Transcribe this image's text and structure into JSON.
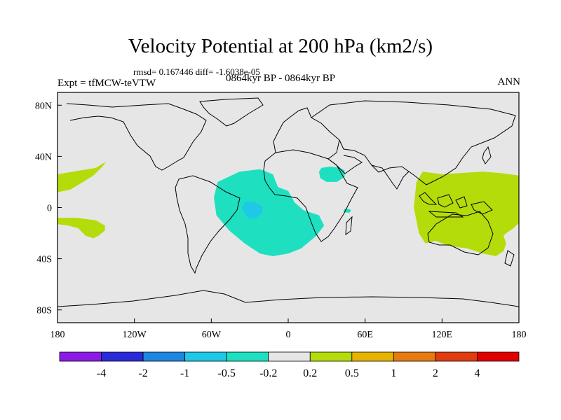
{
  "title": "Velocity Potential at 200 hPa (km2/s)",
  "stats": "rmsd= 0.167446  diff= -1.6038e-05",
  "experiment": "Expt = tfMCW-teVTW",
  "period": "0864kyr BP - 0864kyr BP",
  "season": "ANN",
  "chart_data": {
    "type": "heatmap",
    "projection": "cylindrical-equidistant",
    "xlim": [
      -180,
      180
    ],
    "ylim": [
      -90,
      90
    ],
    "x_ticks": [
      {
        "value": -180,
        "label": "180"
      },
      {
        "value": -120,
        "label": "120W"
      },
      {
        "value": -60,
        "label": "60W"
      },
      {
        "value": 0,
        "label": "0"
      },
      {
        "value": 60,
        "label": "60E"
      },
      {
        "value": 120,
        "label": "120E"
      },
      {
        "value": 180,
        "label": "180"
      }
    ],
    "y_ticks": [
      {
        "value": 80,
        "label": "80N"
      },
      {
        "value": 40,
        "label": "40N"
      },
      {
        "value": 0,
        "label": "0"
      },
      {
        "value": -40,
        "label": "40S"
      },
      {
        "value": -80,
        "label": "80S"
      }
    ],
    "background_color": "#e6e6e6",
    "colorbar": {
      "labels": [
        "-4",
        "-2",
        "-1",
        "-0.5",
        "-0.2",
        "0.2",
        "0.5",
        "1",
        "2",
        "4"
      ],
      "colors": [
        "#8c1ae6",
        "#2a2ad8",
        "#1e86e0",
        "#1ec8e6",
        "#1ee0c0",
        "#e6e6e6",
        "#b4dc0a",
        "#e6b400",
        "#e67a10",
        "#e03c10",
        "#e00000"
      ]
    },
    "regions": [
      {
        "name": "atlantic-africa-negative",
        "level": "-0.5 to -0.2",
        "color": "#1ee0c0",
        "points": [
          [
            -55,
            20
          ],
          [
            -38,
            28
          ],
          [
            -22,
            30
          ],
          [
            -12,
            26
          ],
          [
            -8,
            16
          ],
          [
            0,
            13
          ],
          [
            5,
            4
          ],
          [
            12,
            -2
          ],
          [
            24,
            -6
          ],
          [
            28,
            -14
          ],
          [
            22,
            -22
          ],
          [
            10,
            -32
          ],
          [
            0,
            -36
          ],
          [
            -12,
            -38
          ],
          [
            -22,
            -36
          ],
          [
            -34,
            -28
          ],
          [
            -46,
            -18
          ],
          [
            -56,
            -6
          ],
          [
            -58,
            8
          ]
        ]
      },
      {
        "name": "brazil-core",
        "level": "-1 to -0.5",
        "color": "#1ec8e6",
        "points": [
          [
            -33,
            5
          ],
          [
            -26,
            4
          ],
          [
            -20,
            1
          ],
          [
            -20,
            -4
          ],
          [
            -25,
            -8
          ],
          [
            -30,
            -9
          ],
          [
            -34,
            -5
          ],
          [
            -36,
            0
          ]
        ]
      },
      {
        "name": "arabia-negative",
        "level": "-0.5 to -0.2",
        "color": "#1ee0c0",
        "points": [
          [
            26,
            31
          ],
          [
            33,
            32
          ],
          [
            40,
            31
          ],
          [
            44,
            29
          ],
          [
            44,
            24
          ],
          [
            38,
            20
          ],
          [
            30,
            20
          ],
          [
            25,
            23
          ],
          [
            24,
            28
          ]
        ]
      },
      {
        "name": "east-africa-negative",
        "level": "-0.5 to -0.2",
        "color": "#1ee0c0",
        "points": [
          [
            44,
            -1
          ],
          [
            47,
            -1
          ],
          [
            49,
            -2
          ],
          [
            48,
            -4
          ],
          [
            45,
            -4
          ],
          [
            43,
            -3
          ]
        ]
      },
      {
        "name": "maritime-continent-positive",
        "level": "0.2 to 0.5",
        "color": "#b4dc0a",
        "points": [
          [
            105,
            28
          ],
          [
            120,
            26
          ],
          [
            135,
            27
          ],
          [
            152,
            28
          ],
          [
            165,
            27
          ],
          [
            180,
            25
          ],
          [
            180,
            -12
          ],
          [
            176,
            -16
          ],
          [
            170,
            -20
          ],
          [
            168,
            -22
          ],
          [
            170,
            -28
          ],
          [
            168,
            -34
          ],
          [
            162,
            -38
          ],
          [
            152,
            -36
          ],
          [
            140,
            -32
          ],
          [
            125,
            -30
          ],
          [
            115,
            -26
          ],
          [
            107,
            -28
          ],
          [
            102,
            -20
          ],
          [
            100,
            -10
          ],
          [
            98,
            0
          ],
          [
            99,
            10
          ],
          [
            100,
            20
          ]
        ]
      },
      {
        "name": "east-pacific-north-positive",
        "level": "0.2 to 0.5",
        "color": "#b4dc0a",
        "points": [
          [
            -180,
            26
          ],
          [
            -168,
            28
          ],
          [
            -150,
            31
          ],
          [
            -142,
            36
          ],
          [
            -145,
            32
          ],
          [
            -152,
            25
          ],
          [
            -160,
            20
          ],
          [
            -170,
            14
          ],
          [
            -180,
            12
          ]
        ]
      },
      {
        "name": "east-pacific-south-positive",
        "level": "0.2 to 0.5",
        "color": "#b4dc0a",
        "points": [
          [
            -180,
            -8
          ],
          [
            -165,
            -8
          ],
          [
            -150,
            -10
          ],
          [
            -143,
            -14
          ],
          [
            -143,
            -18
          ],
          [
            -148,
            -22
          ],
          [
            -152,
            -24
          ],
          [
            -158,
            -22
          ],
          [
            -164,
            -16
          ],
          [
            -172,
            -14
          ],
          [
            -180,
            -13
          ]
        ]
      }
    ]
  }
}
